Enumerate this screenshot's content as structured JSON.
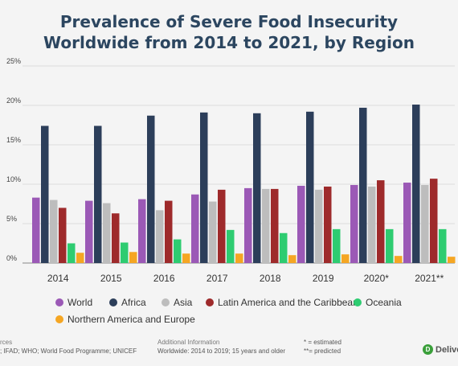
{
  "chart_data": {
    "type": "bar",
    "title_lines": [
      "Prevalence of Severe Food Insecurity",
      "Worldwide from 2014 to 2021, by Region"
    ],
    "categories": [
      "2014",
      "2015",
      "2016",
      "2017",
      "2018",
      "2019",
      "2020*",
      "2021**"
    ],
    "y_ticks": [
      "0%",
      "5%",
      "10%",
      "15%",
      "20%",
      "25%"
    ],
    "ylim": [
      0,
      25
    ],
    "grid": true,
    "legend_position": "bottom",
    "series": [
      {
        "name": "World",
        "color": "#9b59b6",
        "values": [
          8.3,
          7.9,
          8.1,
          8.7,
          9.5,
          9.8,
          9.9,
          10.2
        ]
      },
      {
        "name": "Africa",
        "color": "#2c3e5a",
        "values": [
          17.4,
          17.4,
          18.7,
          19.1,
          19.0,
          19.2,
          19.7,
          20.1
        ]
      },
      {
        "name": "Asia",
        "color": "#bdbdbd",
        "values": [
          8.0,
          7.6,
          6.7,
          7.8,
          9.4,
          9.3,
          9.7,
          9.9
        ]
      },
      {
        "name": "Latin America and the Caribbean",
        "color": "#9e2a2b",
        "values": [
          7.0,
          6.3,
          7.9,
          9.3,
          9.4,
          9.7,
          10.5,
          10.7
        ]
      },
      {
        "name": "Oceania",
        "color": "#2ecc71",
        "values": [
          2.5,
          2.6,
          3.0,
          4.2,
          3.8,
          4.3,
          4.3,
          4.3
        ]
      },
      {
        "name": "Northern America and Europe",
        "color": "#f5a623",
        "values": [
          1.3,
          1.4,
          1.2,
          1.2,
          1.0,
          1.1,
          0.9,
          0.8
        ]
      }
    ]
  },
  "footer": {
    "sources_label": "rces",
    "sources_text": "; IFAD; WHO; World Food Programme; UNICEF",
    "additional_label": "Additional Information",
    "additional_text": "Worldwide: 2014 to 2019; 15 years and older",
    "note_estimated": "* = estimated",
    "note_predicted": "**= predicted"
  },
  "brand": {
    "name": "Delive",
    "mark": "D"
  }
}
